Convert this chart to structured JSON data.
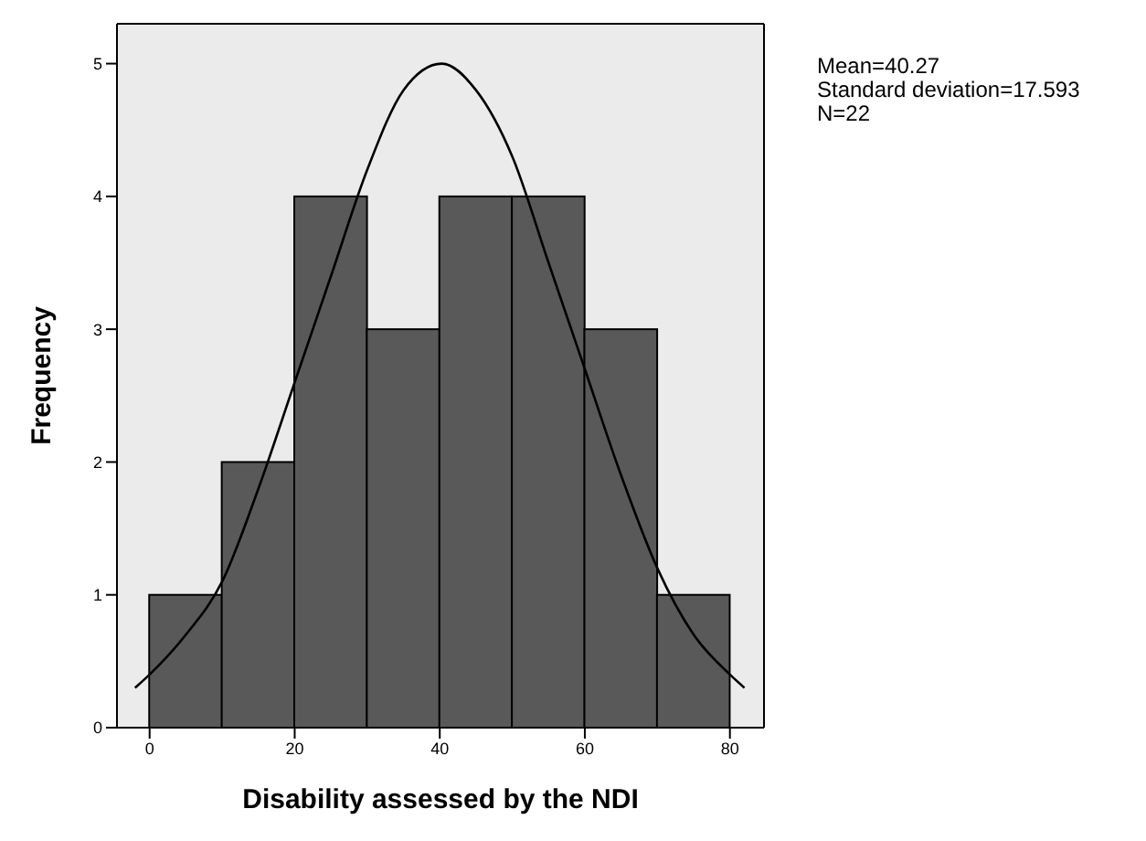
{
  "chart_data": {
    "type": "histogram",
    "xlabel": "Disability assessed by the NDI",
    "ylabel": "Frequency",
    "bins": [
      0,
      10,
      20,
      30,
      40,
      50,
      60,
      70,
      80
    ],
    "values": [
      1,
      2,
      4,
      3,
      4,
      4,
      3,
      1
    ],
    "color": "#595959",
    "xlim": [
      -4.5,
      84.7
    ],
    "ylim": [
      0,
      5.3
    ],
    "xticks": [
      0,
      20,
      40,
      60,
      80
    ],
    "yticks": [
      0,
      1,
      2,
      3,
      4,
      5
    ],
    "series": [
      {
        "type": "line",
        "color": "#000000",
        "x": [
          -2,
          0,
          5,
          10,
          15,
          20,
          25,
          30,
          35,
          40.27,
          45,
          50,
          55,
          60,
          65,
          70,
          75,
          80,
          82
        ],
        "values": [
          0.3,
          0.4,
          0.7,
          1.1,
          1.8,
          2.6,
          3.4,
          4.2,
          4.8,
          5.0,
          4.8,
          4.3,
          3.5,
          2.7,
          1.9,
          1.2,
          0.7,
          0.4,
          0.3
        ]
      }
    ],
    "annotations": [
      "Mean=40.27",
      "Standard deviation=17.593",
      "N=22"
    ]
  }
}
